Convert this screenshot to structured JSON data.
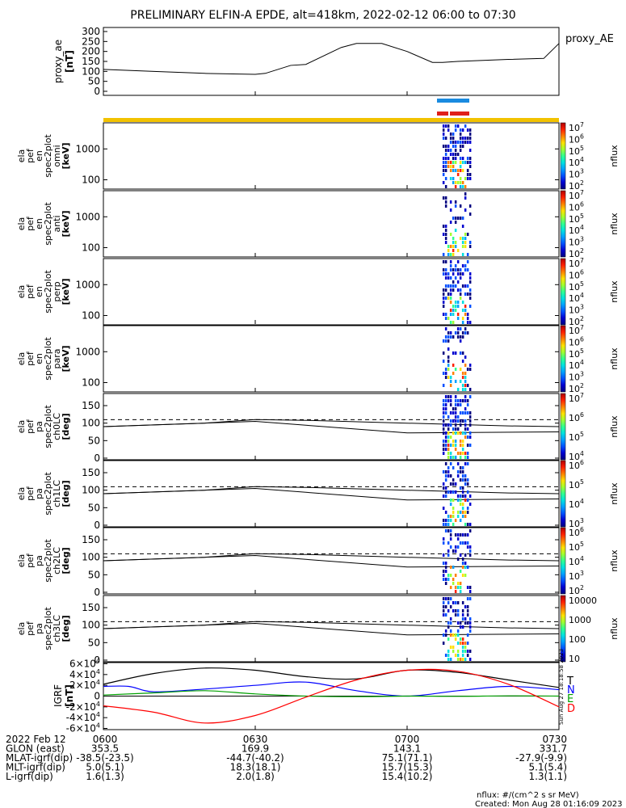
{
  "title": "PRELIMINARY ELFIN-A EPDE, alt=418km, 2022-02-12 06:00 to 07:30",
  "colors": {
    "blue_bar": "#1a8be0",
    "red_bar": "#e0201a",
    "gold_bar": "#f2c200",
    "T": "#000000",
    "N": "#0000ff",
    "E": "#00a000",
    "D": "#ff0000"
  },
  "chart_data": [
    {
      "type": "line",
      "panel": "proxy_ae",
      "ylabel": [
        "proxy_ae",
        "[nT]"
      ],
      "legend": "proxy_AE",
      "yticks": [
        "0",
        "50",
        "100",
        "150",
        "200",
        "250",
        "300"
      ],
      "ylim": [
        0,
        300
      ],
      "x_minutes": [
        0,
        10,
        20,
        30,
        32,
        37,
        40,
        47,
        50,
        55,
        60,
        65,
        67,
        70,
        75,
        80,
        87,
        90
      ],
      "values": [
        110,
        100,
        90,
        85,
        90,
        130,
        135,
        220,
        240,
        240,
        200,
        145,
        145,
        150,
        155,
        160,
        165,
        240
      ]
    },
    {
      "type": "heatmap",
      "panel": "omni",
      "ylabel": [
        "ela",
        "pef",
        "en",
        "spec2plot",
        "omni",
        "[keV]"
      ],
      "yticks": [
        "100",
        "1000"
      ],
      "colorbar": {
        "ticks": [
          "10^7",
          "10^6",
          "10^5",
          "10^4",
          "10^3",
          "10^2"
        ],
        "label": "nflux"
      }
    },
    {
      "type": "heatmap",
      "panel": "anti",
      "ylabel": [
        "ela",
        "pef",
        "en",
        "spec2plot",
        "anti",
        "[keV]"
      ],
      "yticks": [
        "100",
        "1000"
      ],
      "colorbar": {
        "ticks": [
          "10^7",
          "10^6",
          "10^5",
          "10^4",
          "10^3",
          "10^2"
        ],
        "label": "nflux"
      }
    },
    {
      "type": "heatmap",
      "panel": "perp",
      "ylabel": [
        "ela",
        "pef",
        "en",
        "spec2plot",
        "perp",
        "[keV]"
      ],
      "yticks": [
        "100",
        "1000"
      ],
      "colorbar": {
        "ticks": [
          "10^7",
          "10^6",
          "10^5",
          "10^4",
          "10^3",
          "10^2"
        ],
        "label": "nflux"
      }
    },
    {
      "type": "heatmap",
      "panel": "para",
      "ylabel": [
        "ela",
        "pef",
        "en",
        "spec2plot",
        "para",
        "[keV]"
      ],
      "yticks": [
        "100",
        "1000"
      ],
      "colorbar": {
        "ticks": [
          "10^7",
          "10^6",
          "10^5",
          "10^4",
          "10^3",
          "10^2"
        ],
        "label": "nflux"
      }
    },
    {
      "type": "heatmap",
      "panel": "ch0LC",
      "ylabel": [
        "ela",
        "pef",
        "pa",
        "spec2plot",
        "ch0LC",
        "[deg]"
      ],
      "yticks": [
        "0",
        "50",
        "100",
        "150"
      ],
      "colorbar": {
        "ticks": [
          "10^7",
          "10^6",
          "10^5",
          "10^4"
        ],
        "label": "nflux"
      }
    },
    {
      "type": "heatmap",
      "panel": "ch1LC",
      "ylabel": [
        "ela",
        "pef",
        "pa",
        "spec2plot",
        "ch1LC",
        "[deg]"
      ],
      "yticks": [
        "0",
        "50",
        "100",
        "150"
      ],
      "colorbar": {
        "ticks": [
          "10^6",
          "10^5",
          "10^4",
          "10^3"
        ],
        "label": "nflux"
      }
    },
    {
      "type": "heatmap",
      "panel": "ch2LC",
      "ylabel": [
        "ela",
        "pef",
        "pa",
        "spec2plot",
        "ch2LC",
        "[deg]"
      ],
      "yticks": [
        "0",
        "50",
        "100",
        "150"
      ],
      "colorbar": {
        "ticks": [
          "10^6",
          "10^5",
          "10^4",
          "10^3",
          "10^2"
        ],
        "label": "nflux"
      }
    },
    {
      "type": "heatmap",
      "panel": "ch3LC",
      "ylabel": [
        "ela",
        "pef",
        "pa",
        "spec2plot",
        "ch3LC",
        "[deg]"
      ],
      "yticks": [
        "0",
        "50",
        "100",
        "150"
      ],
      "colorbar": {
        "ticks": [
          "10000",
          "1000",
          "100",
          "10"
        ],
        "label": "nflux"
      }
    },
    {
      "type": "line",
      "panel": "IGRF",
      "ylabel": [
        "IGRF",
        "[nT]"
      ],
      "yticks": [
        "-6×10^4",
        "-4×10^4",
        "-2×10^4",
        "0",
        "2×10^4",
        "4×10^4",
        "6×10^4"
      ],
      "ylim": [
        -60000,
        60000
      ],
      "legend": [
        "T",
        "N",
        "E",
        "D"
      ],
      "series": [
        {
          "name": "T",
          "x_minutes": [
            0,
            10,
            20,
            30,
            40,
            50,
            60,
            70,
            80,
            90
          ],
          "values": [
            22000,
            42000,
            52000,
            48000,
            36000,
            32000,
            48000,
            44000,
            30000,
            16000
          ]
        },
        {
          "name": "N",
          "x_minutes": [
            0,
            5,
            10,
            20,
            30,
            40,
            50,
            60,
            70,
            80,
            90
          ],
          "values": [
            18000,
            18000,
            8000,
            13000,
            20000,
            26000,
            10000,
            0,
            10000,
            18000,
            12000
          ]
        },
        {
          "name": "E",
          "x_minutes": [
            0,
            10,
            20,
            30,
            40,
            50,
            60,
            70,
            80,
            90
          ],
          "values": [
            2000,
            6000,
            10000,
            4000,
            0,
            -1000,
            0,
            -500,
            500,
            0
          ]
        },
        {
          "name": "D",
          "x_minutes": [
            0,
            10,
            20,
            30,
            40,
            50,
            60,
            70,
            80,
            90
          ],
          "values": [
            -18000,
            -30000,
            -50000,
            -36000,
            -2000,
            30000,
            48000,
            46000,
            22000,
            -20000
          ]
        }
      ]
    }
  ],
  "x_axis": {
    "rows": [
      {
        "label": "2022 Feb 12",
        "values": [
          "0600",
          "0630",
          "0700",
          "0730"
        ]
      },
      {
        "label": "GLON (east)",
        "values": [
          "353.5",
          "169.9",
          "143.1",
          "331.7"
        ]
      },
      {
        "label": "MLAT-igrf(dip)",
        "values": [
          "-38.5(-23.5)",
          "-44.7(-40.2)",
          "75.1(71.1)",
          "-27.9(-9.9)"
        ]
      },
      {
        "label": "MLT-igrf(dip)",
        "values": [
          "5.0(5.1)",
          "18.3(18.1)",
          "15.7(15.3)",
          "5.1(5.4)"
        ]
      },
      {
        "label": "L-igrf(dip)",
        "values": [
          "1.6(1.3)",
          "2.0(1.8)",
          "15.4(10.2)",
          "1.3(1.1)"
        ]
      }
    ]
  },
  "side_label": "Sun Aug 27 18:18:58 2023",
  "footer": {
    "units": "nflux: #/(cm^2 s sr MeV)",
    "created": "Created: Mon Aug 28 01:16:09 2023"
  }
}
